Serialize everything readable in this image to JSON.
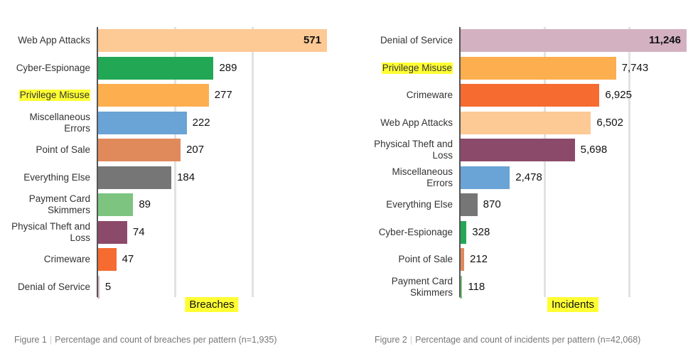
{
  "chart_data": [
    {
      "type": "bar",
      "orientation": "horizontal",
      "categories": [
        "Web App Attacks",
        "Cyber-Espionage",
        "Privilege Misuse",
        "Miscellaneous Errors",
        "Point of Sale",
        "Everything Else",
        "Payment Card Skimmers",
        "Physical Theft and Loss",
        "Crimeware",
        "Denial of Service"
      ],
      "values": [
        571,
        289,
        277,
        222,
        207,
        184,
        89,
        74,
        47,
        5
      ],
      "colors": [
        "#fdc994",
        "#22a855",
        "#fdae4f",
        "#6aa3d6",
        "#e08a5c",
        "#767676",
        "#7cc47f",
        "#8c4a6a",
        "#f56b30",
        "#d5b3c2"
      ],
      "xlim": [
        0,
        571
      ],
      "xticks": [
        193.5,
        387
      ],
      "grid": true,
      "xlabel": "Breaches",
      "highlight": 2,
      "caption_label": "Figure 1",
      "caption": "Percentage and count of breaches per pattern (n=1,935)"
    },
    {
      "type": "bar",
      "orientation": "horizontal",
      "categories": [
        "Denial of Service",
        "Privilege Misuse",
        "Crimeware",
        "Web App Attacks",
        "Physical Theft and Loss",
        "Miscellaneous Errors",
        "Everything Else",
        "Cyber-Espionage",
        "Point of Sale",
        "Payment Card Skimmers"
      ],
      "values": [
        11246,
        7743,
        6925,
        6502,
        5698,
        2478,
        870,
        328,
        212,
        118
      ],
      "value_labels": [
        "11,246",
        "7,743",
        "6,925",
        "6,502",
        "5,698",
        "2,478",
        "870",
        "328",
        "212",
        "118"
      ],
      "colors": [
        "#d3b1c1",
        "#fdae4f",
        "#f56b30",
        "#fdc994",
        "#8c4a6a",
        "#6aa3d6",
        "#767676",
        "#22a855",
        "#e08a5c",
        "#7cc47f"
      ],
      "xlim": [
        0,
        11246
      ],
      "xticks": [
        4206.8,
        8413.6
      ],
      "grid": true,
      "xlabel": "Incidents",
      "highlight": 1,
      "caption_label": "Figure 2",
      "caption": "Percentage and count of incidents per pattern (n=42,068)"
    }
  ]
}
